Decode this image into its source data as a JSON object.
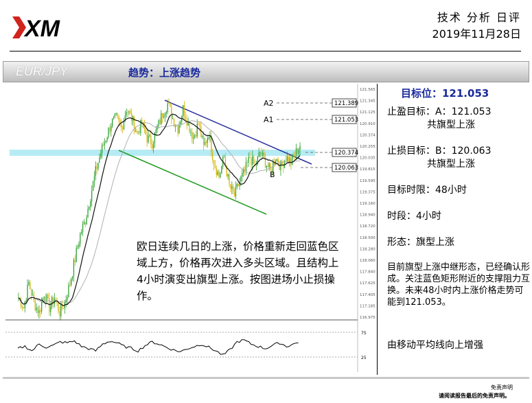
{
  "header": {
    "brand": "XM",
    "title": "技术 分析 日评",
    "date": "2019年11月28日"
  },
  "band": {
    "pair": "EUR/JPY",
    "trend": "趋势：上涨趋势"
  },
  "chart_data": {
    "type": "line",
    "title": "",
    "price_axis_ticks": [
      "121.565",
      "121.345",
      "121.125",
      "120.910",
      "120.374",
      "120.255",
      "120.035",
      "119.815",
      "119.595",
      "119.375",
      "119.160",
      "118.940",
      "118.720",
      "118.500",
      "118.280",
      "118.060",
      "117.840",
      "117.625",
      "117.405",
      "117.185",
      "116.975"
    ],
    "levels": [
      {
        "label": "A2",
        "value": 121.389
      },
      {
        "label": "A1",
        "value": 121.053
      },
      {
        "label": "",
        "value": 120.374
      },
      {
        "label": "B",
        "value": 120.063
      }
    ],
    "close_path": [
      117.3,
      117.1,
      117.6,
      117.2,
      117.0,
      117.4,
      117.1,
      117.3,
      117.0,
      117.2,
      117.6,
      118.1,
      118.6,
      118.9,
      119.4,
      119.9,
      120.3,
      120.6,
      120.9,
      121.0,
      120.8,
      121.2,
      121.0,
      120.7,
      120.9,
      120.6,
      120.5,
      120.8,
      121.1,
      121.3,
      121.0,
      120.8,
      121.2,
      120.9,
      120.6,
      120.9,
      120.4,
      120.7,
      120.1,
      119.8,
      120.2,
      119.6,
      119.4,
      119.7,
      119.9,
      120.2,
      120.0,
      120.3,
      120.1,
      119.9,
      120.2,
      120.0,
      120.2,
      120.1,
      120.3,
      120.5
    ],
    "oscillator_axis_ticks": [
      "75",
      "25"
    ],
    "rsi_path": [
      45,
      50,
      40,
      55,
      48,
      52,
      60,
      58,
      62,
      50,
      45,
      40,
      55,
      62,
      58,
      50,
      46,
      40,
      52,
      60,
      55,
      48,
      42,
      38,
      45,
      50,
      55,
      48,
      40,
      30,
      42,
      60,
      64,
      55,
      50,
      45,
      52,
      58,
      50,
      55,
      62
    ],
    "annotation": "B"
  },
  "overlay_text": "欧日连续几日的上涨，价格重新走回蓝色区域上方，价格再次进入多头区域。且结构上4小时演变出旗型上涨。按图进场小止损操作。",
  "panel": {
    "target_label": "目标位：121.053",
    "tp_label": "止盈目标：A：121.053",
    "tp_note": "共旗型上涨",
    "sl_label": "止损目标：B：120.063",
    "sl_note": "共旗型上涨",
    "time_limit": "目标时限：48小时",
    "period": "时段：4小时",
    "pattern": "形态：旗型上涨",
    "description": "目前旗型上涨中继形态，已经确认形成。关注蓝色矩形附近的支撑阻力互换。未来48小时内上涨价格走势可能到121.053。",
    "ma_note": "由移动平均线向上增强"
  },
  "disclaimer": {
    "line1": "免责声明",
    "line2": "请阅读报告最后的免责声明。"
  },
  "colors": {
    "trend_blue": "#1a2a9c",
    "channel_upper": "#2a2f9e",
    "channel_lower": "#1f9a1f",
    "zone": "#a9e7f2",
    "logo_red": "#d0241c"
  }
}
